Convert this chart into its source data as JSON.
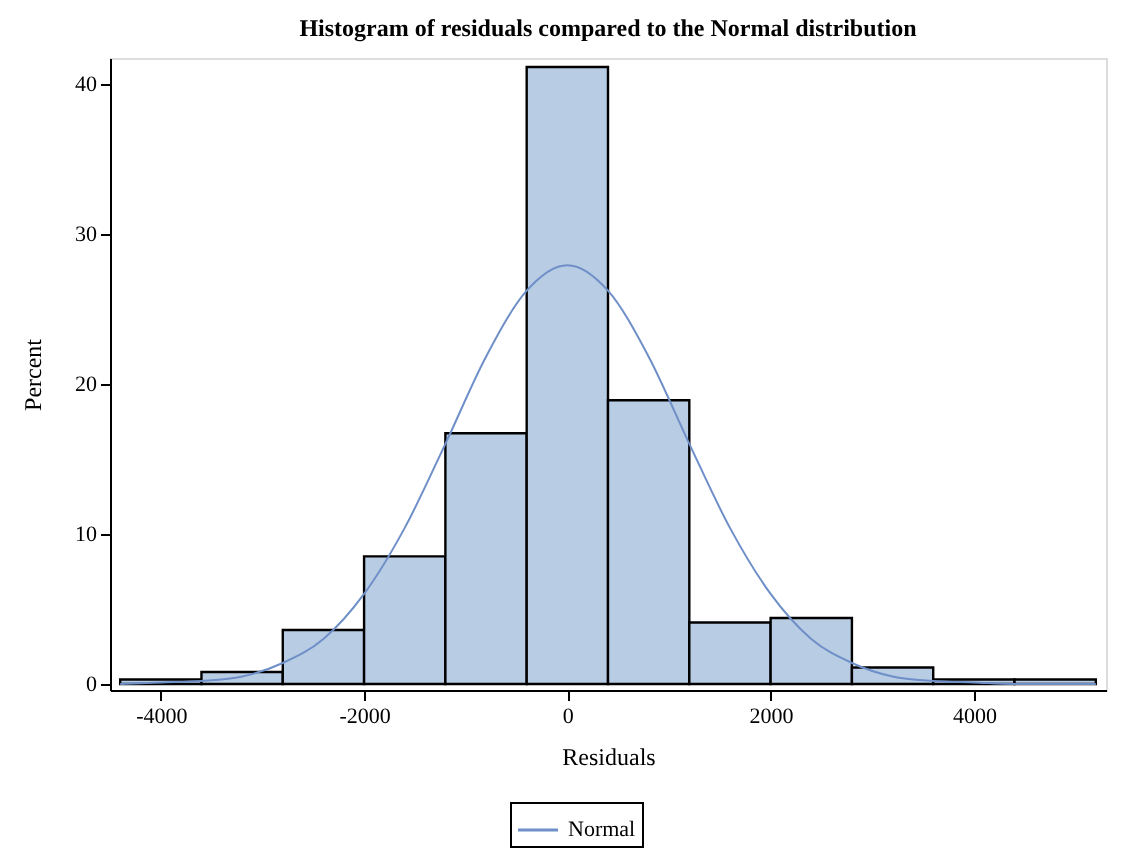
{
  "chart_data": {
    "type": "histogram",
    "title": "Histogram of residuals compared to the Normal distribution",
    "xlabel": "Residuals",
    "ylabel": "Percent",
    "bins": [
      -4400,
      -3600,
      -2800,
      -2000,
      -1200,
      -400,
      400,
      1200,
      2000,
      2800,
      3600,
      4400,
      5200
    ],
    "values": [
      0.3,
      0.8,
      3.6,
      8.5,
      16.7,
      41.1,
      18.9,
      4.1,
      4.4,
      1.1,
      0.3,
      0.3
    ],
    "color": "#b8cce4",
    "series": [
      {
        "name": "Normal",
        "type": "line",
        "color": "#6f8fc8",
        "x": [
          -4400,
          -4000,
          -3600,
          -3200,
          -2800,
          -2400,
          -2000,
          -1600,
          -1200,
          -800,
          -400,
          0,
          400,
          800,
          1200,
          1600,
          2000,
          2400,
          2800,
          3200,
          3600,
          4000,
          4400,
          4800,
          5200
        ],
        "values": [
          0,
          0.1,
          0.2,
          0.5,
          1.4,
          3.0,
          6.0,
          10.4,
          16.0,
          21.8,
          26.2,
          27.9,
          26.2,
          21.8,
          16.0,
          10.4,
          6.0,
          3.0,
          1.4,
          0.5,
          0.2,
          0.1,
          0,
          0,
          0
        ]
      }
    ],
    "xlim": [
      -4500,
      5300
    ],
    "ylim": [
      -0.4,
      41.7
    ],
    "xticks": [
      -4000,
      -2000,
      0,
      2000,
      4000
    ],
    "yticks": [
      0,
      10,
      20,
      30,
      40
    ],
    "grid": false,
    "legend": "bottom"
  }
}
